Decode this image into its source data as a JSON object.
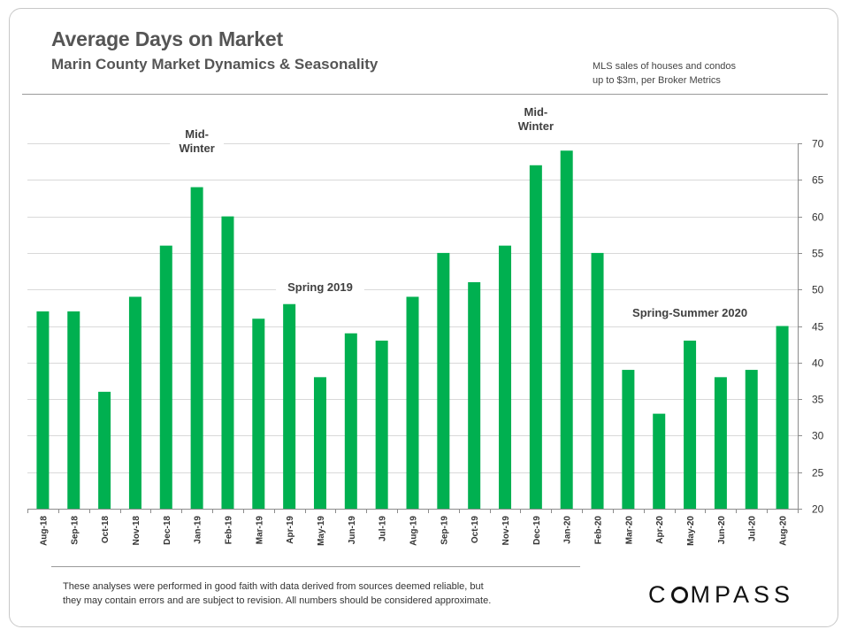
{
  "header": {
    "title": "Average Days on Market",
    "subtitle": "Marin County Market Dynamics & Seasonality",
    "source_line1": "MLS sales of houses and condos",
    "source_line2": "up to $3m, per Broker Metrics"
  },
  "chart_data": {
    "type": "bar",
    "title": "Average Days on Market",
    "subtitle": "Marin County Market Dynamics & Seasonality",
    "xlabel": "",
    "ylabel": "",
    "ylim": [
      20,
      70
    ],
    "yticks": [
      20,
      25,
      30,
      35,
      40,
      45,
      50,
      55,
      60,
      65,
      70
    ],
    "y_axis_side": "right",
    "grid": true,
    "color": "#00b050",
    "categories": [
      "Aug-18",
      "Sep-18",
      "Oct-18",
      "Nov-18",
      "Dec-18",
      "Jan-19",
      "Feb-19",
      "Mar-19",
      "Apr-19",
      "May-19",
      "Jun-19",
      "Jul-19",
      "Aug-19",
      "Sep-19",
      "Oct-19",
      "Nov-19",
      "Dec-19",
      "Jan-20",
      "Feb-20",
      "Mar-20",
      "Apr-20",
      "May-20",
      "Jun-20",
      "Jul-20",
      "Aug-20"
    ],
    "values": [
      47,
      47,
      36,
      49,
      56,
      64,
      60,
      46,
      48,
      38,
      44,
      43,
      49,
      55,
      51,
      56,
      67,
      69,
      55,
      39,
      33,
      43,
      38,
      39,
      45
    ],
    "annotations": [
      {
        "lines": [
          "Mid-",
          "Winter"
        ],
        "category": "Jan-19",
        "level": 70
      },
      {
        "lines": [
          "Spring 2019"
        ],
        "category": "May-19",
        "level": 50
      },
      {
        "lines": [
          "Mid-",
          "Winter"
        ],
        "category": "Dec-19",
        "level": 73
      },
      {
        "lines": [
          "Spring-Summer 2020"
        ],
        "category": "May-20",
        "level": 46.5
      }
    ]
  },
  "footer": {
    "disclaimer_line1": "These analyses were performed in good faith with data derived from sources deemed reliable, but",
    "disclaimer_line2": "they may contain errors and are subject to revision. All numbers should be considered  approximate.",
    "logo_left": "C",
    "logo_right": "MPASS"
  }
}
